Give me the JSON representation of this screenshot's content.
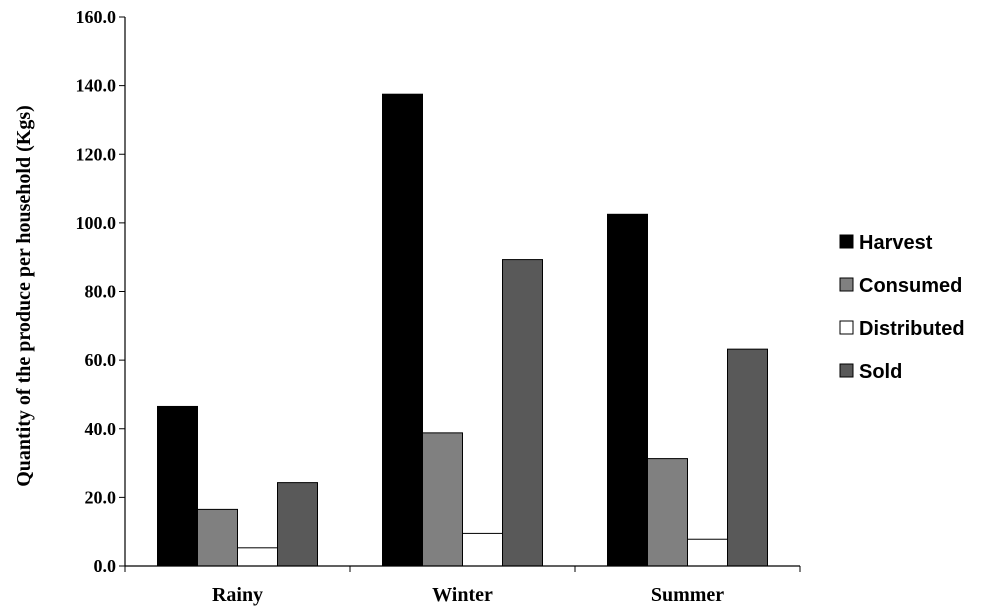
{
  "chart_data": {
    "type": "bar",
    "categories": [
      "Rainy",
      "Winter",
      "Summer"
    ],
    "series": [
      {
        "name": "Harvest",
        "values": [
          46.5,
          137.5,
          102.5
        ],
        "color": "#000000"
      },
      {
        "name": "Consumed",
        "values": [
          16.5,
          38.8,
          31.3
        ],
        "color": "#808080"
      },
      {
        "name": "Distributed",
        "values": [
          5.3,
          9.5,
          7.8
        ],
        "color": "#ffffff"
      },
      {
        "name": "Sold",
        "values": [
          24.3,
          89.3,
          63.2
        ],
        "color": "#595959"
      }
    ],
    "title": "",
    "xlabel": "",
    "ylabel": "Quantity of the produce per household (Kgs)",
    "ylim": [
      0,
      160
    ],
    "yticks": [
      "0.0",
      "20.0",
      "40.0",
      "60.0",
      "80.0",
      "100.0",
      "120.0",
      "140.0",
      "160.0"
    ],
    "grid": false,
    "legend": "right"
  }
}
